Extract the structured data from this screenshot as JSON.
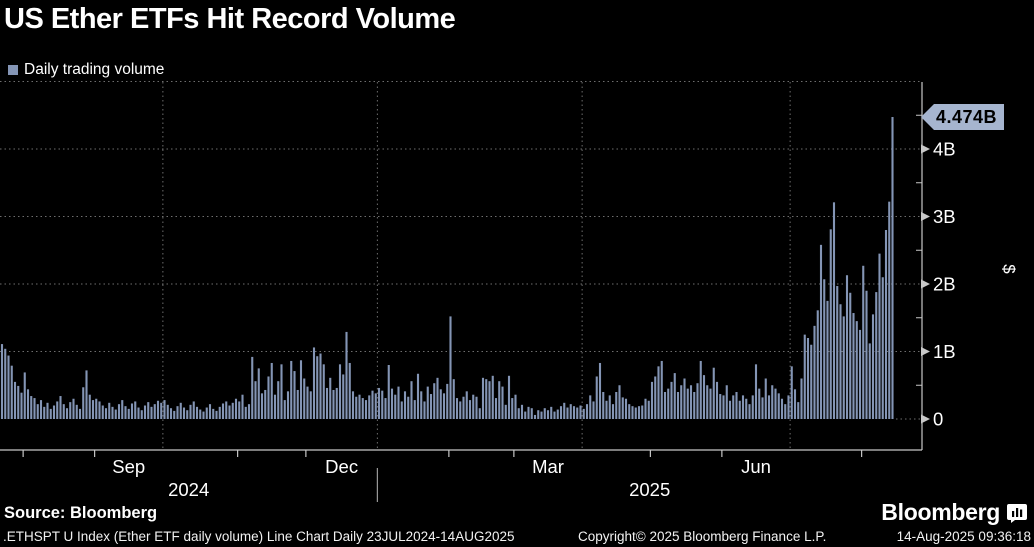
{
  "header": {
    "title": "US Ether ETFs Hit Record Volume"
  },
  "legend": {
    "label": "Daily trading volume"
  },
  "colors": {
    "background": "#000000",
    "bar": "#8495b5",
    "tag_background": "#a6b5cf",
    "tag_text": "#000000",
    "axis": "#c8c8c8",
    "gridline": "#6e6e6e",
    "text": "#ffffff"
  },
  "last_value_tag": "4.474B",
  "footer": {
    "source": "Source: Bloomberg",
    "info_left": ".ETHSPT U Index (Ether ETF daily volume) Line Chart  Daily 23JUL2024-14AUG2025",
    "copyright": "Copyright© 2025 Bloomberg Finance L.P.",
    "timestamp": "14-Aug-2025 09:36:18",
    "brand": "Bloomberg"
  },
  "chart_data": {
    "type": "bar",
    "title": "US Ether ETFs Hit Record Volume",
    "series_name": "Daily trading volume",
    "unit": "USD, billions",
    "y_axis_unit_label": "$",
    "date_range": "23JUL2024-14AUG2025",
    "ylim": [
      0,
      5
    ],
    "grid": "dotted",
    "legend_position": "top-left",
    "bar_color": "#8495b5",
    "yticks": [
      {
        "value": 0,
        "label": "0"
      },
      {
        "value": 1,
        "label": "1B"
      },
      {
        "value": 2,
        "label": "2B"
      },
      {
        "value": 3,
        "label": "3B"
      },
      {
        "value": 4,
        "label": "4B"
      }
    ],
    "y_minor_ticks": [
      0.5,
      1.5,
      2.5,
      3.5,
      4.5
    ],
    "y_gridlines": [
      1,
      2,
      3,
      4,
      5
    ],
    "last_value": 4.474,
    "month_tick_boundaries": [
      7,
      29,
      73,
      94,
      138,
      158,
      200,
      222,
      265
    ],
    "quarter_gridline_boundaries": [
      50,
      116,
      179,
      243
    ],
    "year_divider_boundary": 116,
    "month_labels": [
      {
        "label": "Sep",
        "mid_index": 39.5
      },
      {
        "label": "Dec",
        "mid_index": 105
      },
      {
        "label": "Mar",
        "mid_index": 168.5
      },
      {
        "label": "Jun",
        "mid_index": 232.5
      }
    ],
    "year_labels": [
      {
        "label": "2024"
      },
      {
        "label": "2025"
      }
    ],
    "values": [
      1.11,
      1.04,
      0.94,
      0.79,
      0.55,
      0.49,
      0.39,
      0.69,
      0.44,
      0.34,
      0.31,
      0.22,
      0.28,
      0.18,
      0.24,
      0.15,
      0.2,
      0.26,
      0.34,
      0.22,
      0.16,
      0.25,
      0.3,
      0.21,
      0.15,
      0.47,
      0.72,
      0.36,
      0.28,
      0.3,
      0.26,
      0.2,
      0.16,
      0.24,
      0.18,
      0.14,
      0.22,
      0.28,
      0.19,
      0.15,
      0.23,
      0.26,
      0.17,
      0.13,
      0.2,
      0.25,
      0.18,
      0.22,
      0.27,
      0.24,
      0.28,
      0.21,
      0.16,
      0.12,
      0.19,
      0.24,
      0.17,
      0.13,
      0.21,
      0.26,
      0.18,
      0.14,
      0.11,
      0.17,
      0.22,
      0.15,
      0.12,
      0.18,
      0.23,
      0.26,
      0.2,
      0.24,
      0.3,
      0.26,
      0.36,
      0.18,
      0.22,
      0.92,
      0.56,
      0.75,
      0.38,
      0.43,
      0.63,
      0.83,
      0.36,
      0.56,
      0.81,
      0.28,
      0.41,
      0.86,
      0.71,
      0.43,
      0.87,
      0.6,
      0.48,
      0.41,
      1.06,
      0.93,
      0.97,
      0.81,
      0.46,
      0.61,
      0.43,
      0.46,
      0.81,
      0.66,
      1.29,
      0.83,
      0.41,
      0.33,
      0.36,
      0.31,
      0.28,
      0.35,
      0.42,
      0.38,
      0.46,
      0.42,
      0.31,
      0.8,
      0.45,
      0.36,
      0.48,
      0.26,
      0.41,
      0.33,
      0.56,
      0.28,
      0.67,
      0.41,
      0.26,
      0.48,
      0.37,
      0.53,
      0.61,
      0.44,
      0.38,
      0.52,
      1.52,
      0.59,
      0.31,
      0.26,
      0.33,
      0.41,
      0.28,
      0.36,
      0.33,
      0.16,
      0.61,
      0.59,
      0.56,
      0.64,
      0.31,
      0.56,
      0.48,
      0.21,
      0.64,
      0.31,
      0.36,
      0.16,
      0.21,
      0.11,
      0.18,
      0.16,
      0.06,
      0.13,
      0.11,
      0.16,
      0.13,
      0.18,
      0.11,
      0.14,
      0.19,
      0.24,
      0.17,
      0.22,
      0.19,
      0.17,
      0.2,
      0.15,
      0.22,
      0.35,
      0.26,
      0.63,
      0.83,
      0.4,
      0.27,
      0.35,
      0.22,
      0.4,
      0.5,
      0.32,
      0.3,
      0.22,
      0.19,
      0.17,
      0.19,
      0.2,
      0.3,
      0.27,
      0.55,
      0.63,
      0.78,
      0.86,
      0.4,
      0.45,
      0.55,
      0.68,
      0.4,
      0.5,
      0.6,
      0.45,
      0.5,
      0.4,
      0.53,
      0.86,
      0.65,
      0.5,
      0.45,
      0.76,
      0.55,
      0.37,
      0.35,
      0.5,
      0.27,
      0.35,
      0.4,
      0.27,
      0.35,
      0.3,
      0.22,
      0.35,
      0.81,
      0.45,
      0.32,
      0.6,
      0.35,
      0.5,
      0.45,
      0.38,
      0.3,
      0.22,
      0.35,
      0.78,
      0.44,
      0.25,
      0.6,
      1.25,
      1.2,
      1.1,
      1.38,
      1.61,
      2.58,
      2.07,
      1.75,
      2.81,
      3.21,
      1.97,
      1.7,
      1.52,
      2.13,
      1.87,
      1.57,
      1.45,
      1.32,
      2.27,
      1.9,
      1.12,
      1.55,
      1.88,
      2.45,
      2.1,
      2.8,
      3.22,
      4.474
    ]
  }
}
